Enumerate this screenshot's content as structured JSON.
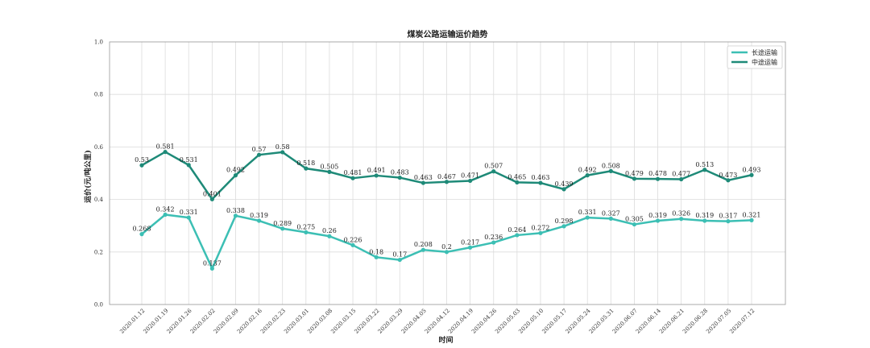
{
  "chart_data": {
    "type": "line",
    "title": "煤炭公路运输运价趋势",
    "xlabel": "时间",
    "ylabel": "运价(元/吨公里)",
    "ylim": [
      0,
      1.0
    ],
    "yticks": [
      "0.0",
      "0.2",
      "0.4",
      "0.6",
      "0.8",
      "1.0"
    ],
    "grid": true,
    "legend_position": "top-right",
    "categories": [
      "2020.01.12",
      "2020.01.19",
      "2020.01.26",
      "2020.02.02",
      "2020.02.09",
      "2020.02.16",
      "2020.02.23",
      "2020.03.01",
      "2020.03.08",
      "2020.03.15",
      "2020.03.22",
      "2020.03.29",
      "2020.04.05",
      "2020.04.12",
      "2020.04.19",
      "2020.04.26",
      "2020.05.03",
      "2020.05.10",
      "2020.05.17",
      "2020.05.24",
      "2020.05.31",
      "2020.06.07",
      "2020.06.14",
      "2020.06.21",
      "2020.06.28",
      "2020.07.05",
      "2020.07.12"
    ],
    "series": [
      {
        "name": "长途运输",
        "color": "#3cbfb4",
        "values": [
          0.268,
          0.342,
          0.331,
          0.137,
          0.338,
          0.319,
          0.289,
          0.275,
          0.26,
          0.226,
          0.18,
          0.17,
          0.208,
          0.2,
          0.217,
          0.236,
          0.264,
          0.272,
          0.298,
          0.331,
          0.327,
          0.305,
          0.319,
          0.326,
          0.319,
          0.317,
          0.321
        ],
        "labels": [
          "0.268",
          "0.342",
          "0.331",
          "0.137",
          "0.338",
          "0.319",
          "0.289",
          "0.275",
          "0.26",
          "0.226",
          "0.18",
          "0.17",
          "0.208",
          "0.2",
          "0.217",
          "0.236",
          "0.264",
          "0.272",
          "0.298",
          "0.331",
          "0.327",
          "0.305",
          "0.319",
          "0.326",
          "0.319",
          "0.317",
          "0.321"
        ]
      },
      {
        "name": "中途运输",
        "color": "#1e8a78",
        "values": [
          0.53,
          0.581,
          0.531,
          0.401,
          0.492,
          0.57,
          0.58,
          0.518,
          0.505,
          0.481,
          0.491,
          0.483,
          0.463,
          0.467,
          0.471,
          0.507,
          0.465,
          0.463,
          0.439,
          0.492,
          0.508,
          0.479,
          0.478,
          0.477,
          0.513,
          0.473,
          0.493
        ],
        "labels": [
          "0.53",
          "0.581",
          "0.531",
          "0.401",
          "0.492",
          "0.57",
          "0.58",
          "0.518",
          "0.505",
          "0.481",
          "0.491",
          "0.483",
          "0.463",
          "0.467",
          "0.471",
          "0.507",
          "0.465",
          "0.463",
          "0.439",
          "0.492",
          "0.508",
          "0.479",
          "0.478",
          "0.477",
          "0.513",
          "0.473",
          "0.493"
        ]
      }
    ]
  }
}
